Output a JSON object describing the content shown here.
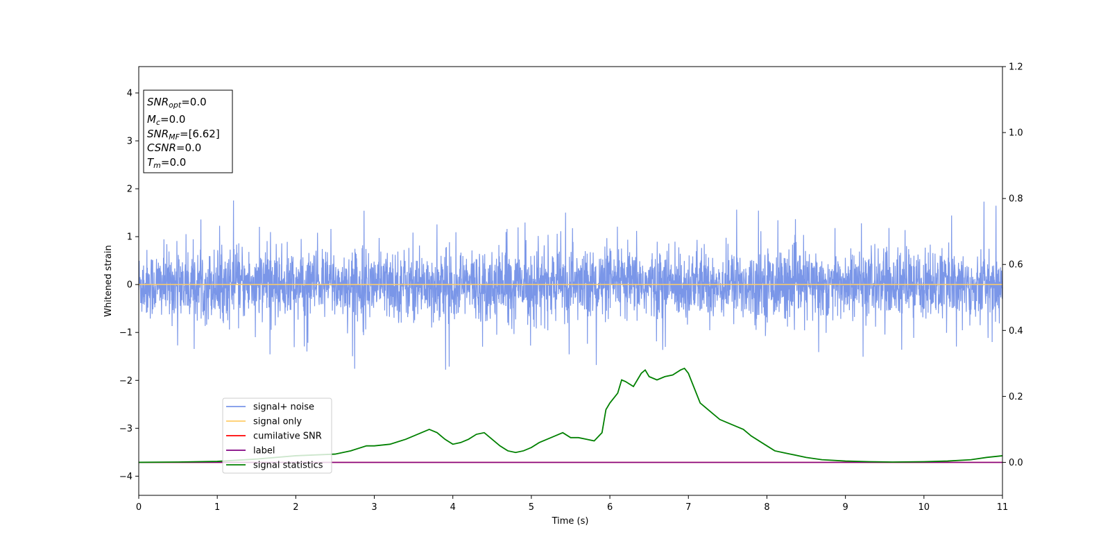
{
  "chart_data": {
    "type": "line",
    "xlabel": "Time (s)",
    "ylabel": "Whitened strain",
    "xlim": [
      0,
      11
    ],
    "ylim": [
      -4.4,
      4.55
    ],
    "y2lim": [
      -0.1,
      1.2
    ],
    "x_ticks": [
      0,
      1,
      2,
      3,
      4,
      5,
      6,
      7,
      8,
      9,
      10,
      11
    ],
    "y_ticks": [
      -4,
      -3,
      -2,
      -1,
      0,
      1,
      2,
      3,
      4
    ],
    "y_tick_labels": [
      "−4",
      "−3",
      "−2",
      "−1",
      "0",
      "1",
      "2",
      "3",
      "4"
    ],
    "y2_ticks": [
      0.0,
      0.2,
      0.4,
      0.6,
      0.8,
      1.0,
      1.2
    ],
    "y2_tick_labels": [
      "0.0",
      "0.2",
      "0.4",
      "0.6",
      "0.8",
      "1.0",
      "1.2"
    ],
    "grid": false,
    "legend_position": "lower-left",
    "colors": {
      "noise": "#7a96e8",
      "signal": "#ffcc66",
      "snr": "#ff0000",
      "label": "#800080",
      "stats": "#008000"
    },
    "series": [
      {
        "name": "signal+ noise",
        "axis": "left",
        "color_key": "noise",
        "style": "random noise, approx. amplitude ±1.0, peaks to ±1.8",
        "envelope": {
          "x": [
            0,
            11
          ],
          "typical_abs": 0.85,
          "max_abs": 1.78
        }
      },
      {
        "name": "signal only",
        "axis": "left",
        "color_key": "signal",
        "x": [
          0,
          11
        ],
        "y": [
          0,
          0
        ]
      },
      {
        "name": "cumilative SNR",
        "axis": "right",
        "color_key": "snr",
        "x": [
          0,
          11
        ],
        "y": [
          0,
          0
        ]
      },
      {
        "name": "label",
        "axis": "right",
        "color_key": "label",
        "x": [
          0,
          11
        ],
        "y": [
          0,
          0
        ]
      },
      {
        "name": "signal statistics",
        "axis": "right",
        "color_key": "stats",
        "x": [
          0,
          0.5,
          1.0,
          1.5,
          2.0,
          2.5,
          2.7,
          2.9,
          3.0,
          3.2,
          3.4,
          3.6,
          3.7,
          3.8,
          3.9,
          4.0,
          4.1,
          4.2,
          4.3,
          4.4,
          4.5,
          4.6,
          4.7,
          4.8,
          4.9,
          5.0,
          5.1,
          5.2,
          5.3,
          5.4,
          5.5,
          5.6,
          5.7,
          5.8,
          5.9,
          5.95,
          6.0,
          6.1,
          6.15,
          6.2,
          6.3,
          6.35,
          6.4,
          6.45,
          6.5,
          6.6,
          6.7,
          6.8,
          6.9,
          6.95,
          7.0,
          7.05,
          7.15,
          7.3,
          7.4,
          7.5,
          7.6,
          7.7,
          7.8,
          7.9,
          8.0,
          8.1,
          8.2,
          8.3,
          8.5,
          8.7,
          9.0,
          9.3,
          9.6,
          10.0,
          10.3,
          10.6,
          10.8,
          11.0
        ],
        "y": [
          0.0,
          0.001,
          0.003,
          0.01,
          0.02,
          0.025,
          0.035,
          0.05,
          0.05,
          0.055,
          0.07,
          0.09,
          0.1,
          0.09,
          0.07,
          0.055,
          0.06,
          0.07,
          0.085,
          0.09,
          0.07,
          0.05,
          0.035,
          0.03,
          0.035,
          0.045,
          0.06,
          0.07,
          0.08,
          0.09,
          0.075,
          0.075,
          0.07,
          0.065,
          0.09,
          0.16,
          0.18,
          0.21,
          0.25,
          0.245,
          0.23,
          0.25,
          0.27,
          0.28,
          0.26,
          0.25,
          0.26,
          0.265,
          0.28,
          0.285,
          0.27,
          0.24,
          0.18,
          0.15,
          0.13,
          0.12,
          0.11,
          0.1,
          0.08,
          0.065,
          0.05,
          0.035,
          0.03,
          0.025,
          0.015,
          0.008,
          0.004,
          0.002,
          0.001,
          0.002,
          0.004,
          0.008,
          0.015,
          0.02
        ]
      }
    ],
    "annotation": {
      "lines": [
        {
          "base": "SNR",
          "sub": "opt",
          "value": "=0.0"
        },
        {
          "base": "M",
          "sub": "c",
          "value": "=0.0"
        },
        {
          "base": "SNR",
          "sub": "MF",
          "value": "=[6.62]"
        },
        {
          "base": "CSNR",
          "sub": "",
          "value": "=0.0"
        },
        {
          "base": "T",
          "sub": "m",
          "value": "=0.0"
        }
      ]
    }
  }
}
